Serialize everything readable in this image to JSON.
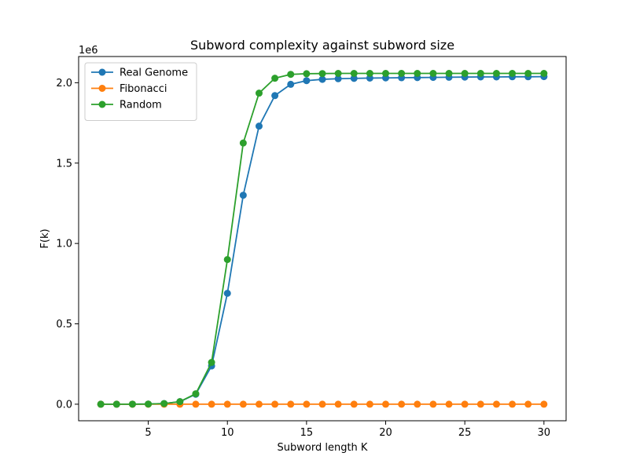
{
  "chart_data": {
    "type": "line",
    "title": "Subword complexity against subword size",
    "xlabel": "Subword length K",
    "ylabel": "F(k)",
    "y_offset_label": "1e6",
    "xlim": [
      0.6,
      31.4
    ],
    "ylim": [
      -0.103,
      2.163
    ],
    "x_ticks": [
      5,
      10,
      15,
      20,
      25,
      30
    ],
    "x_tick_labels": [
      "5",
      "10",
      "15",
      "20",
      "25",
      "30"
    ],
    "y_ticks": [
      0.0,
      0.5,
      1.0,
      1.5,
      2.0
    ],
    "y_tick_labels": [
      "0.0",
      "0.5",
      "1.0",
      "1.5",
      "2.0"
    ],
    "grid": false,
    "legend_position": "top-left",
    "x": [
      2,
      3,
      4,
      5,
      6,
      7,
      8,
      9,
      10,
      11,
      12,
      13,
      14,
      15,
      16,
      17,
      18,
      19,
      20,
      21,
      22,
      23,
      24,
      25,
      26,
      27,
      28,
      29,
      30
    ],
    "series": [
      {
        "name": "Real Genome",
        "color": "#1f77b4",
        "values": [
          2e-05,
          6e-05,
          0.0003,
          0.001,
          0.004,
          0.016,
          0.062,
          0.238,
          0.69,
          1.3,
          1.73,
          1.92,
          1.99,
          2.013,
          2.021,
          2.025,
          2.027,
          2.029,
          2.03,
          2.031,
          2.032,
          2.033,
          2.034,
          2.035,
          2.036,
          2.036,
          2.037,
          2.037,
          2.038
        ]
      },
      {
        "name": "Fibonacci",
        "color": "#ff7f0e",
        "values": [
          0,
          0,
          0,
          0,
          0,
          0,
          0,
          0,
          0,
          0,
          0,
          0,
          0,
          0,
          0,
          0,
          0,
          0,
          0,
          0,
          0,
          0,
          0,
          0,
          0,
          0,
          0,
          0,
          0
        ]
      },
      {
        "name": "Random",
        "color": "#2ca02c",
        "values": [
          2e-05,
          6e-05,
          0.0003,
          0.001,
          0.004,
          0.016,
          0.065,
          0.26,
          0.9,
          1.625,
          1.935,
          2.028,
          2.052,
          2.056,
          2.057,
          2.058,
          2.058,
          2.058,
          2.058,
          2.058,
          2.058,
          2.058,
          2.058,
          2.058,
          2.058,
          2.058,
          2.058,
          2.058,
          2.058
        ]
      }
    ]
  }
}
